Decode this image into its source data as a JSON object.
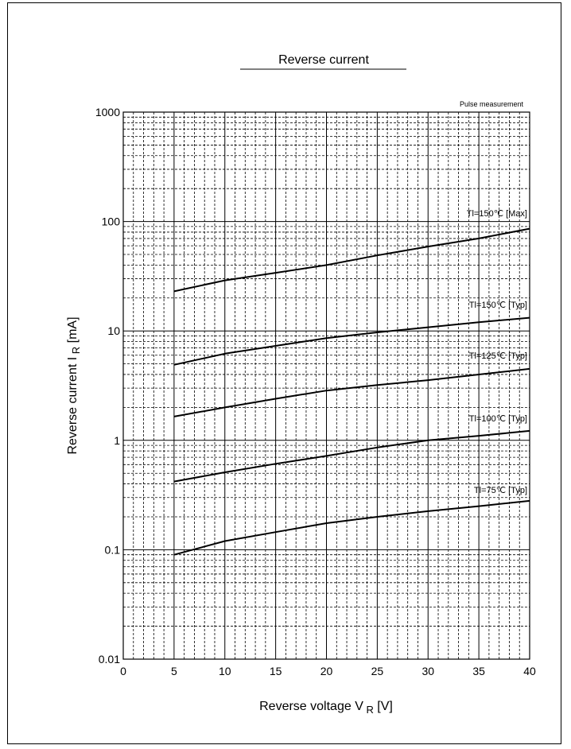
{
  "chart_data": {
    "type": "line",
    "title": "Reverse current",
    "note": "Pulse measurement",
    "xlabel": {
      "name": "Reverse voltage",
      "symbol": "V",
      "subscript": "R",
      "unit": "[V]"
    },
    "ylabel": {
      "name": "Reverse current",
      "symbol": "I",
      "subscript": "R",
      "unit": "[mA]"
    },
    "x_scale": "linear",
    "y_scale": "log",
    "xlim": [
      0,
      40
    ],
    "ylim": [
      0.01,
      1000
    ],
    "x_ticks": [
      "0",
      "5",
      "10",
      "15",
      "20",
      "25",
      "30",
      "35",
      "40"
    ],
    "y_ticks": [
      "0.01",
      "0.1",
      "1",
      "10",
      "100",
      "1000"
    ],
    "grid": true,
    "series": [
      {
        "name": "Tl=150℃  [Max]",
        "x": [
          5,
          10,
          15,
          20,
          25,
          30,
          35,
          40
        ],
        "values": [
          23,
          29,
          34,
          40,
          49,
          59,
          70,
          86
        ]
      },
      {
        "name": "Tl=150℃  [Typ]",
        "x": [
          5,
          10,
          15,
          20,
          25,
          30,
          35,
          40
        ],
        "values": [
          4.9,
          6.2,
          7.3,
          8.6,
          9.7,
          10.8,
          12,
          13.2
        ]
      },
      {
        "name": "Tl=125℃  [Typ]",
        "x": [
          5,
          10,
          15,
          20,
          25,
          30,
          35,
          40
        ],
        "values": [
          1.65,
          2.0,
          2.4,
          2.85,
          3.2,
          3.55,
          4.0,
          4.5
        ]
      },
      {
        "name": "Tl=100℃  [Typ]",
        "x": [
          5,
          10,
          15,
          20,
          25,
          30,
          35,
          40
        ],
        "values": [
          0.42,
          0.51,
          0.61,
          0.72,
          0.86,
          1.0,
          1.1,
          1.22
        ]
      },
      {
        "name": "Tl=75℃  [Typ]",
        "x": [
          5,
          10,
          15,
          20,
          25,
          30,
          35,
          40
        ],
        "values": [
          0.09,
          0.12,
          0.145,
          0.175,
          0.2,
          0.225,
          0.25,
          0.28
        ]
      }
    ]
  }
}
